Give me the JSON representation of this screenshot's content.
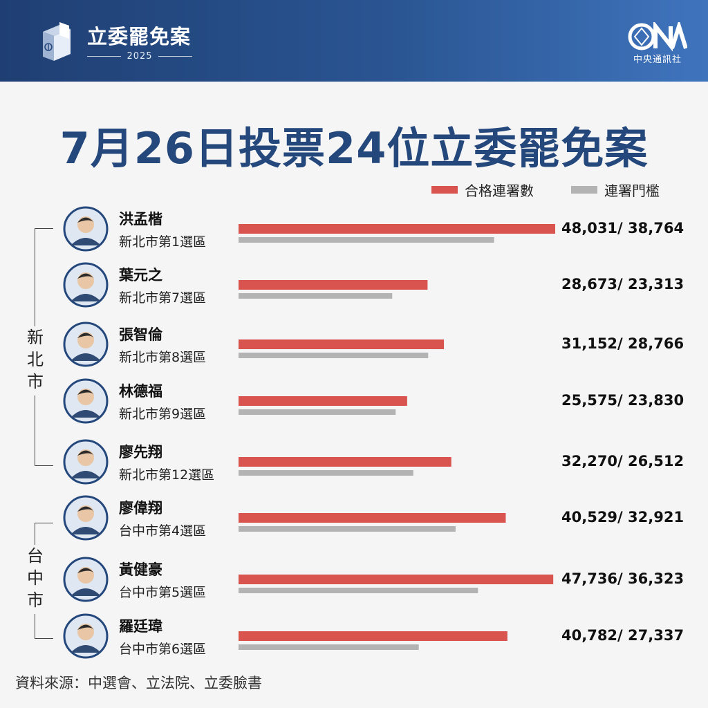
{
  "header": {
    "brand_title": "立委罷免案",
    "brand_year": "2025",
    "publisher_logo_text": "CNA",
    "publisher_name": "中央通訊社"
  },
  "title": "7月26日投票24位立委罷免案",
  "legend": [
    {
      "label": "合格連署數",
      "color": "#d9534f"
    },
    {
      "label": "連署門檻",
      "color": "#b3b3b3"
    }
  ],
  "regions": [
    {
      "name_chars": [
        "新",
        "北",
        "市"
      ]
    },
    {
      "name_chars": [
        "台",
        "中",
        "市"
      ]
    }
  ],
  "chart_data": {
    "type": "bar",
    "orientation": "horizontal",
    "title": "7月26日投票24位立委罷免案",
    "categories": [
      "洪孟楷",
      "葉元之",
      "張智倫",
      "林德福",
      "廖先翔",
      "廖偉翔",
      "黃健豪",
      "羅廷瑋"
    ],
    "series": [
      {
        "name": "合格連署數",
        "color": "#d9534f",
        "values": [
          48031,
          28673,
          31152,
          25575,
          32270,
          40529,
          47736,
          40782
        ]
      },
      {
        "name": "連署門檻",
        "color": "#b3b3b3",
        "values": [
          38764,
          23313,
          28766,
          23830,
          26512,
          32921,
          36323,
          27337
        ]
      }
    ],
    "rows": [
      {
        "name": "洪孟楷",
        "district": "新北市第1選區",
        "value_text": "48,031/ 38,764"
      },
      {
        "name": "葉元之",
        "district": "新北市第7選區",
        "value_text": "28,673/ 23,313"
      },
      {
        "name": "張智倫",
        "district": "新北市第8選區",
        "value_text": "31,152/ 28,766"
      },
      {
        "name": "林德福",
        "district": "新北市第9選區",
        "value_text": "25,575/ 23,830"
      },
      {
        "name": "廖先翔",
        "district": "新北市第12選區",
        "value_text": "32,270/ 26,512"
      },
      {
        "name": "廖偉翔",
        "district": "台中市第4選區",
        "value_text": "40,529/ 32,921"
      },
      {
        "name": "黃健豪",
        "district": "台中市第5選區",
        "value_text": "47,736/ 36,323"
      },
      {
        "name": "羅廷瑋",
        "district": "台中市第6選區",
        "value_text": "40,782/ 27,337"
      }
    ],
    "xlim": [
      0,
      48031
    ],
    "grid": false,
    "legend_position": "top-right"
  },
  "footer": {
    "source": "資料來源：中選會、立法院、立委臉書"
  }
}
